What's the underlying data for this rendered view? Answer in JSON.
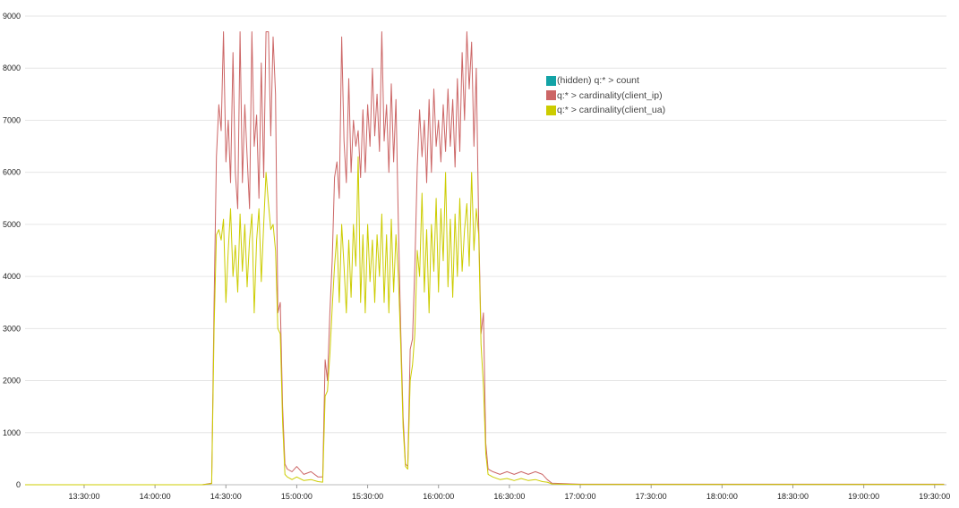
{
  "chart_data": {
    "type": "line",
    "grid": true,
    "ylim": [
      0,
      9000
    ],
    "yticks": [
      "0",
      "1000",
      "2000",
      "3000",
      "4000",
      "5000",
      "6000",
      "7000",
      "8000",
      "9000"
    ],
    "xlim_minutes": [
      "13:05",
      "19:35"
    ],
    "xticks": [
      "13:30:00",
      "14:00:00",
      "14:30:00",
      "15:00:00",
      "15:30:00",
      "16:00:00",
      "16:30:00",
      "17:00:00",
      "17:30:00",
      "18:00:00",
      "18:30:00",
      "19:00:00",
      "19:30:00"
    ],
    "legend_position": "top-right",
    "series": [
      {
        "name": "(hidden) q:* > count",
        "color": "#13a3a6",
        "hidden": true,
        "points": []
      },
      {
        "name": "q:* > cardinality(client_ip)",
        "color": "#cc6666",
        "points": [
          [
            "13:05:00",
            0
          ],
          [
            "13:30:00",
            0
          ],
          [
            "14:00:00",
            0
          ],
          [
            "14:20:00",
            0
          ],
          [
            "14:24:00",
            30
          ],
          [
            "14:25:00",
            3500
          ],
          [
            "14:26:00",
            6300
          ],
          [
            "14:27:00",
            7300
          ],
          [
            "14:28:00",
            6800
          ],
          [
            "14:29:00",
            8700
          ],
          [
            "14:30:00",
            6200
          ],
          [
            "14:31:00",
            7000
          ],
          [
            "14:32:00",
            5800
          ],
          [
            "14:33:00",
            8300
          ],
          [
            "14:34:00",
            6000
          ],
          [
            "14:35:00",
            5300
          ],
          [
            "14:36:00",
            8700
          ],
          [
            "14:37:00",
            5800
          ],
          [
            "14:38:00",
            7300
          ],
          [
            "14:39:00",
            6300
          ],
          [
            "14:40:00",
            5300
          ],
          [
            "14:41:00",
            8700
          ],
          [
            "14:42:00",
            6500
          ],
          [
            "14:43:00",
            7100
          ],
          [
            "14:44:00",
            5500
          ],
          [
            "14:45:00",
            8100
          ],
          [
            "14:46:00",
            5900
          ],
          [
            "14:47:00",
            8700
          ],
          [
            "14:48:00",
            8700
          ],
          [
            "14:49:00",
            6700
          ],
          [
            "14:50:00",
            8600
          ],
          [
            "14:51:00",
            7500
          ],
          [
            "14:52:00",
            3300
          ],
          [
            "14:53:00",
            3500
          ],
          [
            "14:54:00",
            1500
          ],
          [
            "14:55:00",
            400
          ],
          [
            "14:56:00",
            300
          ],
          [
            "14:58:00",
            250
          ],
          [
            "15:00:00",
            350
          ],
          [
            "15:03:00",
            200
          ],
          [
            "15:06:00",
            250
          ],
          [
            "15:09:00",
            150
          ],
          [
            "15:11:00",
            150
          ],
          [
            "15:12:00",
            2400
          ],
          [
            "15:13:00",
            2000
          ],
          [
            "15:14:00",
            3300
          ],
          [
            "15:15:00",
            4300
          ],
          [
            "15:16:00",
            5900
          ],
          [
            "15:17:00",
            6200
          ],
          [
            "15:18:00",
            5500
          ],
          [
            "15:19:00",
            8600
          ],
          [
            "15:20:00",
            6600
          ],
          [
            "15:21:00",
            5800
          ],
          [
            "15:22:00",
            7800
          ],
          [
            "15:23:00",
            6000
          ],
          [
            "15:24:00",
            7000
          ],
          [
            "15:25:00",
            6500
          ],
          [
            "15:26:00",
            6800
          ],
          [
            "15:27:00",
            5900
          ],
          [
            "15:28:00",
            7200
          ],
          [
            "15:29:00",
            6000
          ],
          [
            "15:30:00",
            7300
          ],
          [
            "15:31:00",
            6500
          ],
          [
            "15:32:00",
            8000
          ],
          [
            "15:33:00",
            6700
          ],
          [
            "15:34:00",
            7500
          ],
          [
            "15:35:00",
            6400
          ],
          [
            "15:36:00",
            8700
          ],
          [
            "15:37:00",
            6600
          ],
          [
            "15:38:00",
            7300
          ],
          [
            "15:39:00",
            6000
          ],
          [
            "15:40:00",
            7700
          ],
          [
            "15:41:00",
            6200
          ],
          [
            "15:42:00",
            7400
          ],
          [
            "15:43:00",
            5000
          ],
          [
            "15:44:00",
            3000
          ],
          [
            "15:45:00",
            1300
          ],
          [
            "15:46:00",
            400
          ],
          [
            "15:47:00",
            350
          ],
          [
            "15:48:00",
            2600
          ],
          [
            "15:49:00",
            2800
          ],
          [
            "15:50:00",
            4200
          ],
          [
            "15:51:00",
            6100
          ],
          [
            "15:52:00",
            7200
          ],
          [
            "15:53:00",
            6300
          ],
          [
            "15:54:00",
            7000
          ],
          [
            "15:55:00",
            5800
          ],
          [
            "15:56:00",
            7400
          ],
          [
            "15:57:00",
            6000
          ],
          [
            "15:58:00",
            7600
          ],
          [
            "15:59:00",
            6500
          ],
          [
            "16:00:00",
            7000
          ],
          [
            "16:01:00",
            6200
          ],
          [
            "16:02:00",
            7300
          ],
          [
            "16:03:00",
            6400
          ],
          [
            "16:04:00",
            7600
          ],
          [
            "16:05:00",
            6500
          ],
          [
            "16:06:00",
            7400
          ],
          [
            "16:07:00",
            6100
          ],
          [
            "16:08:00",
            7800
          ],
          [
            "16:09:00",
            6400
          ],
          [
            "16:10:00",
            8300
          ],
          [
            "16:11:00",
            7000
          ],
          [
            "16:12:00",
            8700
          ],
          [
            "16:13:00",
            7600
          ],
          [
            "16:14:00",
            8500
          ],
          [
            "16:15:00",
            6500
          ],
          [
            "16:16:00",
            8000
          ],
          [
            "16:17:00",
            5000
          ],
          [
            "16:18:00",
            2900
          ],
          [
            "16:19:00",
            3300
          ],
          [
            "16:20:00",
            800
          ],
          [
            "16:21:00",
            300
          ],
          [
            "16:23:00",
            250
          ],
          [
            "16:26:00",
            200
          ],
          [
            "16:29:00",
            250
          ],
          [
            "16:32:00",
            200
          ],
          [
            "16:35:00",
            250
          ],
          [
            "16:38:00",
            200
          ],
          [
            "16:41:00",
            250
          ],
          [
            "16:44:00",
            200
          ],
          [
            "16:46:00",
            100
          ],
          [
            "16:48:00",
            30
          ],
          [
            "17:00:00",
            10
          ],
          [
            "17:30:00",
            10
          ],
          [
            "18:00:00",
            10
          ],
          [
            "18:30:00",
            10
          ],
          [
            "19:00:00",
            10
          ],
          [
            "19:34:00",
            10
          ]
        ]
      },
      {
        "name": "q:* > cardinality(client_ua)",
        "color": "#cccc00",
        "points": [
          [
            "13:05:00",
            0
          ],
          [
            "13:30:00",
            0
          ],
          [
            "14:00:00",
            0
          ],
          [
            "14:20:00",
            0
          ],
          [
            "14:24:00",
            20
          ],
          [
            "14:25:00",
            3000
          ],
          [
            "14:26:00",
            4800
          ],
          [
            "14:27:00",
            4900
          ],
          [
            "14:28:00",
            4700
          ],
          [
            "14:29:00",
            5100
          ],
          [
            "14:30:00",
            3500
          ],
          [
            "14:31:00",
            4500
          ],
          [
            "14:32:00",
            5300
          ],
          [
            "14:33:00",
            4000
          ],
          [
            "14:34:00",
            4600
          ],
          [
            "14:35:00",
            3700
          ],
          [
            "14:36:00",
            5200
          ],
          [
            "14:37:00",
            4100
          ],
          [
            "14:38:00",
            5000
          ],
          [
            "14:39:00",
            3800
          ],
          [
            "14:40:00",
            4700
          ],
          [
            "14:41:00",
            5200
          ],
          [
            "14:42:00",
            3300
          ],
          [
            "14:43:00",
            4700
          ],
          [
            "14:44:00",
            5300
          ],
          [
            "14:45:00",
            3900
          ],
          [
            "14:46:00",
            5000
          ],
          [
            "14:47:00",
            6000
          ],
          [
            "14:48:00",
            5400
          ],
          [
            "14:49:00",
            4900
          ],
          [
            "14:50:00",
            5000
          ],
          [
            "14:51:00",
            4500
          ],
          [
            "14:52:00",
            3000
          ],
          [
            "14:53:00",
            2900
          ],
          [
            "14:54:00",
            1200
          ],
          [
            "14:55:00",
            200
          ],
          [
            "14:56:00",
            150
          ],
          [
            "14:58:00",
            100
          ],
          [
            "15:00:00",
            150
          ],
          [
            "15:03:00",
            80
          ],
          [
            "15:06:00",
            100
          ],
          [
            "15:09:00",
            60
          ],
          [
            "15:11:00",
            50
          ],
          [
            "15:12:00",
            1700
          ],
          [
            "15:13:00",
            1800
          ],
          [
            "15:14:00",
            2500
          ],
          [
            "15:15:00",
            3400
          ],
          [
            "15:16:00",
            4200
          ],
          [
            "15:17:00",
            4800
          ],
          [
            "15:18:00",
            3500
          ],
          [
            "15:19:00",
            5000
          ],
          [
            "15:20:00",
            4200
          ],
          [
            "15:21:00",
            3300
          ],
          [
            "15:22:00",
            4700
          ],
          [
            "15:23:00",
            3600
          ],
          [
            "15:24:00",
            5000
          ],
          [
            "15:25:00",
            4200
          ],
          [
            "15:26:00",
            6300
          ],
          [
            "15:27:00",
            3500
          ],
          [
            "15:28:00",
            4800
          ],
          [
            "15:29:00",
            3300
          ],
          [
            "15:30:00",
            5000
          ],
          [
            "15:31:00",
            3900
          ],
          [
            "15:32:00",
            4700
          ],
          [
            "15:33:00",
            3500
          ],
          [
            "15:34:00",
            4800
          ],
          [
            "15:35:00",
            4000
          ],
          [
            "15:36:00",
            5200
          ],
          [
            "15:37:00",
            3500
          ],
          [
            "15:38:00",
            4800
          ],
          [
            "15:39:00",
            3300
          ],
          [
            "15:40:00",
            5100
          ],
          [
            "15:41:00",
            3700
          ],
          [
            "15:42:00",
            4800
          ],
          [
            "15:43:00",
            4000
          ],
          [
            "15:44:00",
            2700
          ],
          [
            "15:45:00",
            1100
          ],
          [
            "15:46:00",
            350
          ],
          [
            "15:47:00",
            300
          ],
          [
            "15:48:00",
            2000
          ],
          [
            "15:49:00",
            2300
          ],
          [
            "15:50:00",
            2900
          ],
          [
            "15:51:00",
            4500
          ],
          [
            "15:52:00",
            4000
          ],
          [
            "15:53:00",
            5600
          ],
          [
            "15:54:00",
            3700
          ],
          [
            "15:55:00",
            4900
          ],
          [
            "15:56:00",
            3300
          ],
          [
            "15:57:00",
            5000
          ],
          [
            "15:58:00",
            4100
          ],
          [
            "15:59:00",
            5500
          ],
          [
            "16:00:00",
            3700
          ],
          [
            "16:01:00",
            5300
          ],
          [
            "16:02:00",
            4300
          ],
          [
            "16:03:00",
            6000
          ],
          [
            "16:04:00",
            3800
          ],
          [
            "16:05:00",
            5100
          ],
          [
            "16:06:00",
            3600
          ],
          [
            "16:07:00",
            5200
          ],
          [
            "16:08:00",
            4000
          ],
          [
            "16:09:00",
            5500
          ],
          [
            "16:10:00",
            4100
          ],
          [
            "16:11:00",
            4900
          ],
          [
            "16:12:00",
            5400
          ],
          [
            "16:13:00",
            4200
          ],
          [
            "16:14:00",
            6000
          ],
          [
            "16:15:00",
            4500
          ],
          [
            "16:16:00",
            5300
          ],
          [
            "16:17:00",
            4800
          ],
          [
            "16:18:00",
            2700
          ],
          [
            "16:19:00",
            1900
          ],
          [
            "16:20:00",
            600
          ],
          [
            "16:21:00",
            200
          ],
          [
            "16:23:00",
            150
          ],
          [
            "16:26:00",
            100
          ],
          [
            "16:29:00",
            120
          ],
          [
            "16:32:00",
            80
          ],
          [
            "16:35:00",
            120
          ],
          [
            "16:38:00",
            80
          ],
          [
            "16:41:00",
            100
          ],
          [
            "16:44:00",
            60
          ],
          [
            "16:46:00",
            50
          ],
          [
            "16:48:00",
            15
          ],
          [
            "17:00:00",
            5
          ],
          [
            "17:30:00",
            5
          ],
          [
            "18:00:00",
            5
          ],
          [
            "18:30:00",
            5
          ],
          [
            "19:00:00",
            5
          ],
          [
            "19:34:00",
            5
          ]
        ]
      }
    ]
  }
}
